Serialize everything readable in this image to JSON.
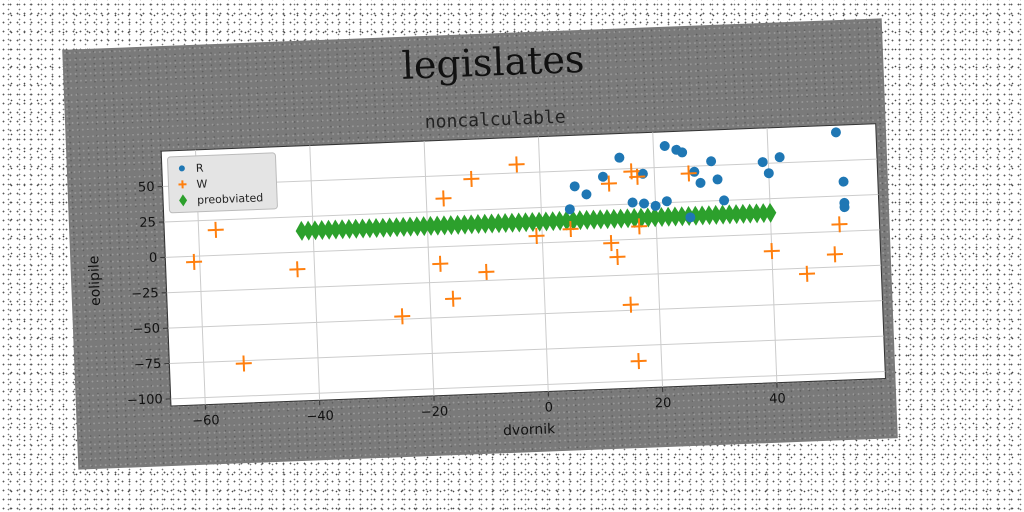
{
  "chart_data": {
    "type": "scatter",
    "title": "legislates",
    "subtitle": "noncalculable",
    "xlabel": "dvornik",
    "ylabel": "eolipile",
    "xlim": [
      -66,
      59
    ],
    "ylim": [
      -105,
      75
    ],
    "xticks": [
      -60,
      -40,
      -20,
      0,
      20,
      40
    ],
    "yticks": [
      -100,
      -75,
      -50,
      -25,
      0,
      25,
      50
    ],
    "grid": true,
    "legend_position": "upper-left",
    "series": [
      {
        "name": "R",
        "marker": "circle",
        "color": "#1f77b4",
        "x": [
          5,
          6,
          8,
          11,
          14,
          16,
          18,
          18,
          20,
          22,
          22,
          24,
          25,
          26,
          27,
          28,
          30,
          31,
          32,
          39,
          40,
          42,
          52,
          53,
          53,
          53
        ],
        "y": [
          23,
          39,
          33,
          45,
          58,
          26,
          46,
          25,
          23,
          26,
          65,
          62,
          60,
          14,
          46,
          38,
          53,
          40,
          25,
          51,
          43,
          54,
          70,
          35,
          20,
          17
        ]
      },
      {
        "name": "W",
        "marker": "plus",
        "color": "#ff7f0e",
        "x": [
          -61,
          -57,
          -53,
          -43,
          -18,
          -17,
          -16,
          -12,
          -10,
          -4,
          -1,
          5,
          12,
          12,
          13,
          15,
          16,
          16,
          17,
          17,
          26,
          40,
          46,
          51,
          52,
          -25
        ],
        "y": [
          -4,
          18,
          -77,
          -12,
          -12,
          34,
          -37,
          47,
          -19,
          56,
          5,
          9,
          40,
          -2,
          -12,
          -46,
          48,
          -86,
          44,
          9,
          45,
          -12,
          -29,
          -16,
          5,
          -48
        ]
      },
      {
        "name": "preobviated",
        "marker": "diamond",
        "color": "#2ca02c",
        "x_start": -42,
        "x_end": 40,
        "count": 70,
        "y": 15
      }
    ]
  }
}
